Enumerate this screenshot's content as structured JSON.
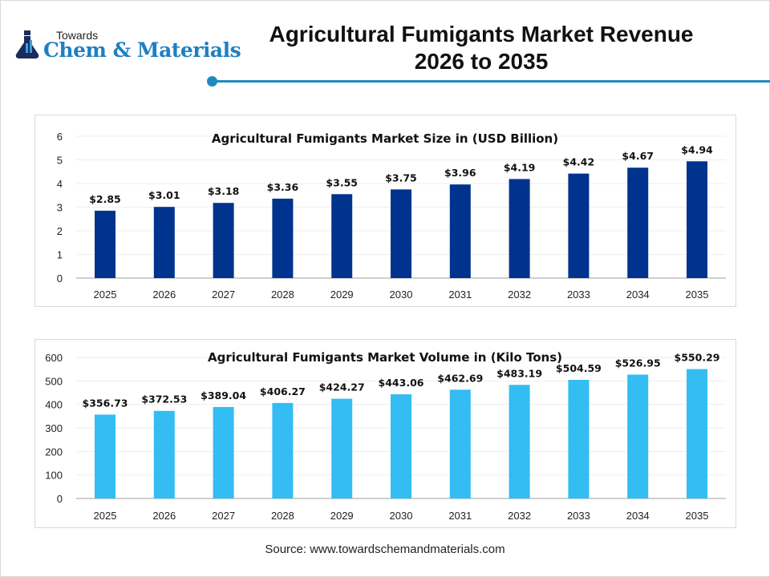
{
  "logo": {
    "small_text": "Towards",
    "big_text": "Chem & Materials"
  },
  "header": {
    "title_line1": "Agricultural Fumigants Market Revenue",
    "title_line2": "2026 to 2035"
  },
  "colors": {
    "accent": "#1f8ac0",
    "size_bars": "#00338d",
    "volume_bars": "#33bdf2"
  },
  "chart_data": [
    {
      "type": "bar",
      "title": "Agricultural Fumigants Market Size in (USD Billion)",
      "categories": [
        "2025",
        "2026",
        "2027",
        "2028",
        "2029",
        "2030",
        "2031",
        "2032",
        "2033",
        "2034",
        "2035"
      ],
      "values": [
        2.85,
        3.01,
        3.18,
        3.36,
        3.55,
        3.75,
        3.96,
        4.19,
        4.42,
        4.67,
        4.94
      ],
      "data_labels": [
        "$2.85",
        "$3.01",
        "$3.18",
        "$3.36",
        "$3.55",
        "$3.75",
        "$3.96",
        "$4.19",
        "$4.42",
        "$4.67",
        "$4.94"
      ],
      "yticks": [
        "0",
        "1",
        "2",
        "3",
        "4",
        "5",
        "6"
      ],
      "ylim": [
        0,
        6
      ],
      "color": "#00338d",
      "grid": true
    },
    {
      "type": "bar",
      "title": "Agricultural Fumigants Market Volume in (Kilo Tons)",
      "categories": [
        "2025",
        "2026",
        "2027",
        "2028",
        "2029",
        "2030",
        "2031",
        "2032",
        "2033",
        "2034",
        "2035"
      ],
      "values": [
        356.73,
        372.53,
        389.04,
        406.27,
        424.27,
        443.06,
        462.69,
        483.19,
        504.59,
        526.95,
        550.29
      ],
      "data_labels": [
        "$356.73",
        "$372.53",
        "$389.04",
        "$406.27",
        "$424.27",
        "$443.06",
        "$462.69",
        "$483.19",
        "$504.59",
        "$526.95",
        "$550.29"
      ],
      "yticks": [
        "0",
        "100",
        "200",
        "300",
        "400",
        "500",
        "600"
      ],
      "ylim": [
        0,
        600
      ],
      "color": "#33bdf2",
      "grid": true
    }
  ],
  "footer": {
    "source": "Source: www.towardschemandmaterials.com"
  }
}
